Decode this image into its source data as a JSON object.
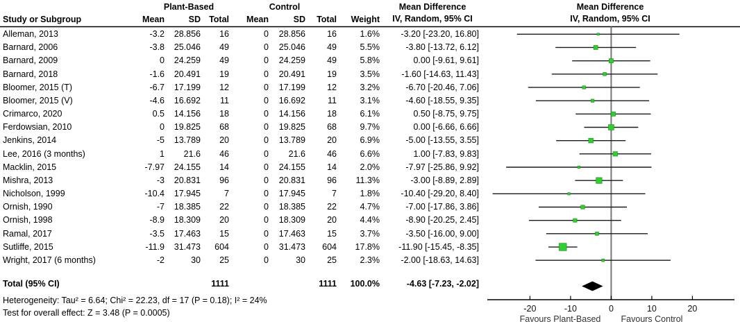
{
  "header": {
    "group1": "Plant-Based",
    "group2": "Control",
    "study_col": "Study or Subgroup",
    "mean_col": "Mean",
    "sd_col": "SD",
    "total_col": "Total",
    "weight_col": "Weight",
    "md_title": "Mean Difference",
    "md_subtitle": "IV, Random, 95% CI"
  },
  "rows": [
    {
      "study": "Alleman, 2013",
      "p_mean": "-3.2",
      "p_sd": "28.856",
      "p_total": "16",
      "c_mean": "0",
      "c_sd": "28.856",
      "c_total": "16",
      "weight": "1.6%",
      "md_ci": "-3.20 [-23.20, 16.80]"
    },
    {
      "study": "Barnard, 2006",
      "p_mean": "-3.8",
      "p_sd": "25.046",
      "p_total": "49",
      "c_mean": "0",
      "c_sd": "25.046",
      "c_total": "49",
      "weight": "5.5%",
      "md_ci": "-3.80 [-13.72, 6.12]"
    },
    {
      "study": "Barnard, 2009",
      "p_mean": "0",
      "p_sd": "24.259",
      "p_total": "49",
      "c_mean": "0",
      "c_sd": "24.259",
      "c_total": "49",
      "weight": "5.8%",
      "md_ci": "0.00 [-9.61, 9.61]"
    },
    {
      "study": "Barnard, 2018",
      "p_mean": "-1.6",
      "p_sd": "20.491",
      "p_total": "19",
      "c_mean": "0",
      "c_sd": "20.491",
      "c_total": "19",
      "weight": "3.5%",
      "md_ci": "-1.60 [-14.63, 11.43]"
    },
    {
      "study": "Bloomer, 2015 (T)",
      "p_mean": "-6.7",
      "p_sd": "17.199",
      "p_total": "12",
      "c_mean": "0",
      "c_sd": "17.199",
      "c_total": "12",
      "weight": "3.2%",
      "md_ci": "-6.70 [-20.46, 7.06]"
    },
    {
      "study": "Bloomer, 2015 (V)",
      "p_mean": "-4.6",
      "p_sd": "16.692",
      "p_total": "11",
      "c_mean": "0",
      "c_sd": "16.692",
      "c_total": "11",
      "weight": "3.1%",
      "md_ci": "-4.60 [-18.55, 9.35]"
    },
    {
      "study": "Crimarco, 2020",
      "p_mean": "0.5",
      "p_sd": "14.156",
      "p_total": "18",
      "c_mean": "0",
      "c_sd": "14.156",
      "c_total": "18",
      "weight": "6.1%",
      "md_ci": "0.50 [-8.75, 9.75]"
    },
    {
      "study": "Ferdowsian, 2010",
      "p_mean": "0",
      "p_sd": "19.825",
      "p_total": "68",
      "c_mean": "0",
      "c_sd": "19.825",
      "c_total": "68",
      "weight": "9.7%",
      "md_ci": "0.00 [-6.66, 6.66]"
    },
    {
      "study": "Jenkins, 2014",
      "p_mean": "-5",
      "p_sd": "13.789",
      "p_total": "20",
      "c_mean": "0",
      "c_sd": "13.789",
      "c_total": "20",
      "weight": "6.9%",
      "md_ci": "-5.00 [-13.55, 3.55]"
    },
    {
      "study": "Lee, 2016 (3 months)",
      "p_mean": "1",
      "p_sd": "21.6",
      "p_total": "46",
      "c_mean": "0",
      "c_sd": "21.6",
      "c_total": "46",
      "weight": "6.6%",
      "md_ci": "1.00 [-7.83, 9.83]"
    },
    {
      "study": "Macklin, 2015",
      "p_mean": "-7.97",
      "p_sd": "24.155",
      "p_total": "14",
      "c_mean": "0",
      "c_sd": "24.155",
      "c_total": "14",
      "weight": "2.0%",
      "md_ci": "-7.97 [-25.86, 9.92]"
    },
    {
      "study": "Mishra, 2013",
      "p_mean": "-3",
      "p_sd": "20.831",
      "p_total": "96",
      "c_mean": "0",
      "c_sd": "20.831",
      "c_total": "96",
      "weight": "11.3%",
      "md_ci": "-3.00 [-8.89, 2.89]"
    },
    {
      "study": "Nicholson, 1999",
      "p_mean": "-10.4",
      "p_sd": "17.945",
      "p_total": "7",
      "c_mean": "0",
      "c_sd": "17.945",
      "c_total": "7",
      "weight": "1.8%",
      "md_ci": "-10.40 [-29.20, 8.40]"
    },
    {
      "study": "Ornish, 1990",
      "p_mean": "-7",
      "p_sd": "18.385",
      "p_total": "22",
      "c_mean": "0",
      "c_sd": "18.385",
      "c_total": "22",
      "weight": "4.7%",
      "md_ci": "-7.00 [-17.86, 3.86]"
    },
    {
      "study": "Ornish, 1998",
      "p_mean": "-8.9",
      "p_sd": "18.309",
      "p_total": "20",
      "c_mean": "0",
      "c_sd": "18.309",
      "c_total": "20",
      "weight": "4.4%",
      "md_ci": "-8.90 [-20.25, 2.45]"
    },
    {
      "study": "Ramal, 2017",
      "p_mean": "-3.5",
      "p_sd": "17.463",
      "p_total": "15",
      "c_mean": "0",
      "c_sd": "17.463",
      "c_total": "15",
      "weight": "3.7%",
      "md_ci": "-3.50 [-16.00, 9.00]"
    },
    {
      "study": "Sutliffe, 2015",
      "p_mean": "-11.9",
      "p_sd": "31.473",
      "p_total": "604",
      "c_mean": "0",
      "c_sd": "31.473",
      "c_total": "604",
      "weight": "17.8%",
      "md_ci": "-11.90 [-15.45, -8.35]"
    },
    {
      "study": "Wright, 2017 (6 months)",
      "p_mean": "-2",
      "p_sd": "30",
      "p_total": "25",
      "c_mean": "0",
      "c_sd": "30",
      "c_total": "25",
      "weight": "2.3%",
      "md_ci": "-2.00 [-18.63, 14.63]"
    }
  ],
  "total_row": {
    "label": "Total (95% CI)",
    "p_total": "1111",
    "c_total": "1111",
    "weight": "100.0%",
    "md_ci": "-4.63 [-7.23, -2.02]"
  },
  "footer": {
    "heterogeneity": "Heterogeneity: Tau² = 6.64; Chi² = 22.23, df = 17 (P = 0.18); I² = 24%",
    "overall_test": "Test for overall effect: Z = 3.48 (P = 0.0005)"
  },
  "chart_data": {
    "type": "scatter",
    "subtype": "forest-plot-mean-difference",
    "title": "Mean Difference",
    "subtitle": "IV, Random, 95% CI",
    "x_ticks": [
      -20,
      -10,
      0,
      10,
      20
    ],
    "x_tick_labels": [
      "-20",
      "-10",
      "0",
      "10",
      "20"
    ],
    "xlim": [
      -30.5,
      30.35
    ],
    "zero_line_x": 0,
    "studies": [
      {
        "name": "Alleman, 2013",
        "md": -3.2,
        "ci_low": -23.2,
        "ci_high": 16.8,
        "weight_pct": 1.6
      },
      {
        "name": "Barnard, 2006",
        "md": -3.8,
        "ci_low": -13.72,
        "ci_high": 6.12,
        "weight_pct": 5.5
      },
      {
        "name": "Barnard, 2009",
        "md": 0.0,
        "ci_low": -9.61,
        "ci_high": 9.61,
        "weight_pct": 5.8
      },
      {
        "name": "Barnard, 2018",
        "md": -1.6,
        "ci_low": -14.63,
        "ci_high": 11.43,
        "weight_pct": 3.5
      },
      {
        "name": "Bloomer, 2015 (T)",
        "md": -6.7,
        "ci_low": -20.46,
        "ci_high": 7.06,
        "weight_pct": 3.2
      },
      {
        "name": "Bloomer, 2015 (V)",
        "md": -4.6,
        "ci_low": -18.55,
        "ci_high": 9.35,
        "weight_pct": 3.1
      },
      {
        "name": "Crimarco, 2020",
        "md": 0.5,
        "ci_low": -8.75,
        "ci_high": 9.75,
        "weight_pct": 6.1
      },
      {
        "name": "Ferdowsian, 2010",
        "md": 0.0,
        "ci_low": -6.66,
        "ci_high": 6.66,
        "weight_pct": 9.7
      },
      {
        "name": "Jenkins, 2014",
        "md": -5.0,
        "ci_low": -13.55,
        "ci_high": 3.55,
        "weight_pct": 6.9
      },
      {
        "name": "Lee, 2016 (3 months)",
        "md": 1.0,
        "ci_low": -7.83,
        "ci_high": 9.83,
        "weight_pct": 6.6
      },
      {
        "name": "Macklin, 2015",
        "md": -7.97,
        "ci_low": -25.86,
        "ci_high": 9.92,
        "weight_pct": 2.0
      },
      {
        "name": "Mishra, 2013",
        "md": -3.0,
        "ci_low": -8.89,
        "ci_high": 2.89,
        "weight_pct": 11.3
      },
      {
        "name": "Nicholson, 1999",
        "md": -10.4,
        "ci_low": -29.2,
        "ci_high": 8.4,
        "weight_pct": 1.8
      },
      {
        "name": "Ornish, 1990",
        "md": -7.0,
        "ci_low": -17.86,
        "ci_high": 3.86,
        "weight_pct": 4.7
      },
      {
        "name": "Ornish, 1998",
        "md": -8.9,
        "ci_low": -20.25,
        "ci_high": 2.45,
        "weight_pct": 4.4
      },
      {
        "name": "Ramal, 2017",
        "md": -3.5,
        "ci_low": -16.0,
        "ci_high": 9.0,
        "weight_pct": 3.7
      },
      {
        "name": "Sutliffe, 2015",
        "md": -11.9,
        "ci_low": -15.45,
        "ci_high": -8.35,
        "weight_pct": 17.8
      },
      {
        "name": "Wright, 2017 (6 months)",
        "md": -2.0,
        "ci_low": -18.63,
        "ci_high": 14.63,
        "weight_pct": 2.3
      }
    ],
    "total": {
      "name": "Total (95% CI)",
      "md": -4.63,
      "ci_low": -7.23,
      "ci_high": -2.02,
      "weight_pct": 100.0
    },
    "legend": {
      "left": "Favours Plant-Based",
      "right": "Favours Control",
      "position": "below-axis"
    },
    "grid": false,
    "colors": {
      "marker_green": "#33CC33",
      "marker_border": "#149414",
      "diamond_black": "#000000",
      "zero_line_gray": "#777777",
      "ci_line": "#1a1a1a",
      "axis_black": "#000000"
    }
  }
}
